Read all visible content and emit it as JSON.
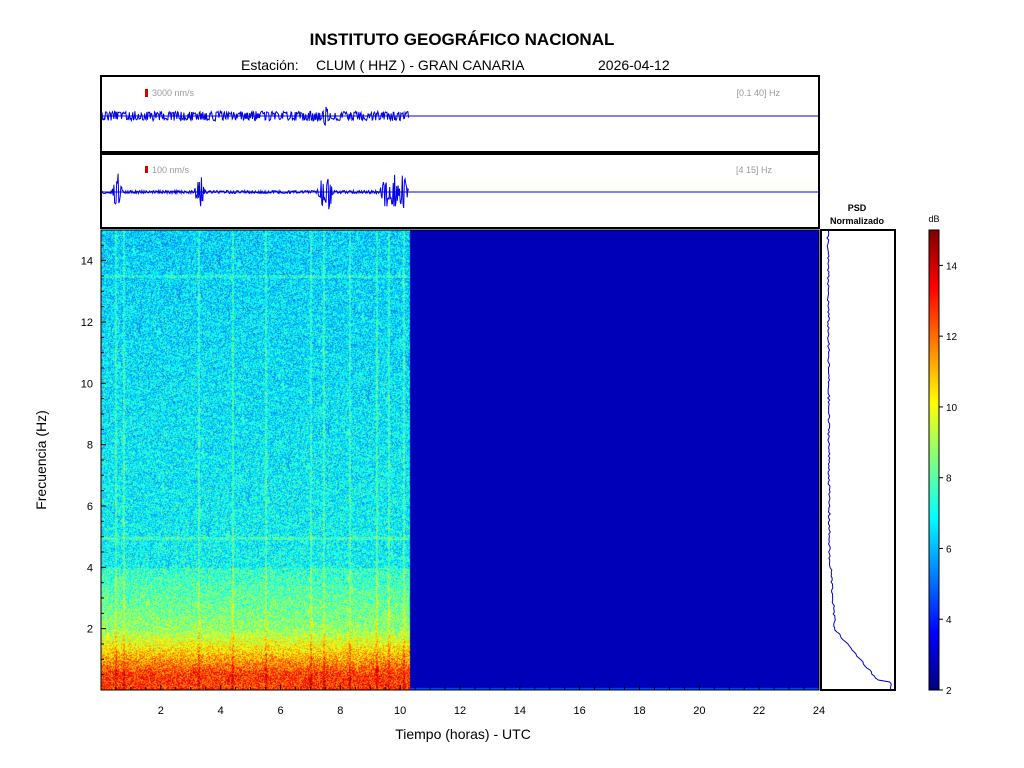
{
  "header": {
    "institution": "INSTITUTO GEOGRÁFICO NACIONAL",
    "station_prefix": "Estación:",
    "station": "CLUM ( HHZ ) - GRAN CANARIA",
    "date": "2026-04-12"
  },
  "colors": {
    "trace": "#0000e6",
    "scale_bar": "#d60000",
    "label_gray": "#9a9a9a",
    "axis": "#000000"
  },
  "chart_data": [
    {
      "type": "line",
      "name": "waveform-broadband",
      "scale_label": "3000 nm/s",
      "filter_label": "[0.1 40] Hz",
      "data_end_hour": 10.3,
      "xlim": [
        0,
        24
      ],
      "spikes_hours": [
        7.5
      ]
    },
    {
      "type": "line",
      "name": "waveform-filtered",
      "scale_label": "100 nm/s",
      "filter_label": "[4 15] Hz",
      "data_end_hour": 10.3,
      "xlim": [
        0,
        24
      ],
      "spikes_hours": [
        0.55,
        3.3,
        7.4,
        7.6,
        9.5,
        9.8,
        10.1
      ]
    },
    {
      "type": "heatmap",
      "name": "spectrogram",
      "xlabel": "Tiempo (horas) - UTC",
      "ylabel": "Frecuencia  (Hz)",
      "xlim": [
        0,
        24
      ],
      "ylim": [
        0,
        15
      ],
      "xticks": [
        2,
        4,
        6,
        8,
        10,
        12,
        14,
        16,
        18,
        20,
        22,
        24
      ],
      "yticks": [
        2,
        4,
        6,
        8,
        10,
        12,
        14
      ],
      "data_end_hour": 10.3,
      "colorbar_unit": "dB",
      "colorbar_range": [
        2,
        15
      ],
      "colorbar_ticks": [
        2,
        4,
        6,
        8,
        10,
        12,
        14
      ],
      "colormap": "jet"
    },
    {
      "type": "line",
      "name": "psd",
      "title": "PSD",
      "subtitle": "Normalizado",
      "ylim": [
        0,
        15
      ]
    }
  ]
}
